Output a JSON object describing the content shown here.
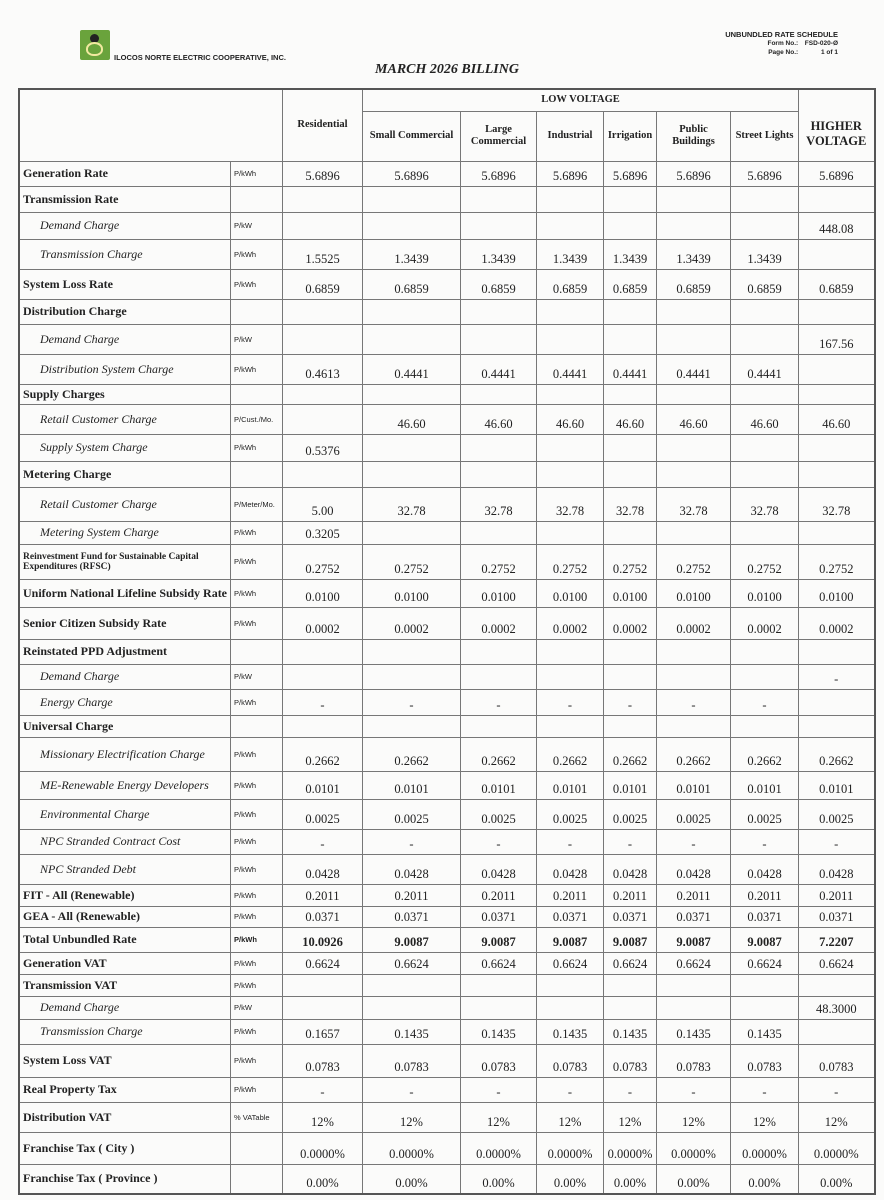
{
  "header": {
    "cooperative": "ILOCOS NORTE ELECTRIC COOPERATIVE, INC.",
    "doc_title": "UNBUNDLED RATE SCHEDULE",
    "form_no_label": "Form No.:",
    "form_no": "FSD-020-Ø",
    "page_no_label": "Page No.:",
    "page_no": "1 of 1",
    "billing_title": "MARCH 2026 BILLING",
    "logo_color": "#6aa33c"
  },
  "columns": {
    "group_low": "LOW VOLTAGE",
    "residential": "Residential",
    "low": [
      "Small Commercial",
      "Large Commercial",
      "Industrial",
      "Irrigation",
      "Public Buildings",
      "Street Lights"
    ],
    "higher": "HIGHER VOLTAGE"
  },
  "rows": [
    {
      "label": "Generation Rate",
      "unit": "P/kWh",
      "style": "bold",
      "values": [
        "5.6896",
        "5.6896",
        "5.6896",
        "5.6896",
        "5.6896",
        "5.6896",
        "5.6896",
        "5.6896"
      ]
    },
    {
      "label": "Transmission Rate",
      "unit": "",
      "style": "bold",
      "values": [
        "",
        "",
        "",
        "",
        "",
        "",
        "",
        ""
      ]
    },
    {
      "label": "Demand Charge",
      "unit": "P/kW",
      "style": "it",
      "values": [
        "",
        "",
        "",
        "",
        "",
        "",
        "",
        "448.08"
      ]
    },
    {
      "label": "Transmission Charge",
      "unit": "P/kWh",
      "style": "it",
      "values": [
        "1.5525",
        "1.3439",
        "1.3439",
        "1.3439",
        "1.3439",
        "1.3439",
        "1.3439",
        ""
      ]
    },
    {
      "label": "System Loss Rate",
      "unit": "P/kWh",
      "style": "bold",
      "values": [
        "0.6859",
        "0.6859",
        "0.6859",
        "0.6859",
        "0.6859",
        "0.6859",
        "0.6859",
        "0.6859"
      ]
    },
    {
      "label": "Distribution Charge",
      "unit": "",
      "style": "bold",
      "values": [
        "",
        "",
        "",
        "",
        "",
        "",
        "",
        ""
      ]
    },
    {
      "label": "Demand Charge",
      "unit": "P/kW",
      "style": "it",
      "values": [
        "",
        "",
        "",
        "",
        "",
        "",
        "",
        "167.56"
      ]
    },
    {
      "label": "Distribution System Charge",
      "unit": "P/kWh",
      "style": "it",
      "values": [
        "0.4613",
        "0.4441",
        "0.4441",
        "0.4441",
        "0.4441",
        "0.4441",
        "0.4441",
        ""
      ]
    },
    {
      "label": "Supply Charges",
      "unit": "",
      "style": "bold",
      "values": [
        "",
        "",
        "",
        "",
        "",
        "",
        "",
        ""
      ]
    },
    {
      "label": "Retail Customer Charge",
      "unit": "P/Cust./Mo.",
      "style": "it",
      "values": [
        "",
        "46.60",
        "46.60",
        "46.60",
        "46.60",
        "46.60",
        "46.60",
        "46.60"
      ]
    },
    {
      "label": "Supply System Charge",
      "unit": "P/kWh",
      "style": "it",
      "values": [
        "0.5376",
        "",
        "",
        "",
        "",
        "",
        "",
        ""
      ]
    },
    {
      "label": "Metering Charge",
      "unit": "",
      "style": "bold",
      "values": [
        "",
        "",
        "",
        "",
        "",
        "",
        "",
        ""
      ]
    },
    {
      "label": "Retail Customer Charge",
      "unit": "P/Meter/Mo.",
      "style": "it",
      "values": [
        "5.00",
        "32.78",
        "32.78",
        "32.78",
        "32.78",
        "32.78",
        "32.78",
        "32.78"
      ]
    },
    {
      "label": "Metering System Charge",
      "unit": "P/kWh",
      "style": "it",
      "values": [
        "0.3205",
        "",
        "",
        "",
        "",
        "",
        "",
        ""
      ]
    },
    {
      "label": "Reinvestment Fund for Sustainable Capital Expenditures (RFSC)",
      "unit": "P/kWh",
      "style": "bold small",
      "values": [
        "0.2752",
        "0.2752",
        "0.2752",
        "0.2752",
        "0.2752",
        "0.2752",
        "0.2752",
        "0.2752"
      ]
    },
    {
      "label": "Uniform National Lifeline Subsidy Rate",
      "unit": "P/kWh",
      "style": "bold",
      "values": [
        "0.0100",
        "0.0100",
        "0.0100",
        "0.0100",
        "0.0100",
        "0.0100",
        "0.0100",
        "0.0100"
      ]
    },
    {
      "label": "Senior Citizen Subsidy Rate",
      "unit": "P/kWh",
      "style": "bold",
      "values": [
        "0.0002",
        "0.0002",
        "0.0002",
        "0.0002",
        "0.0002",
        "0.0002",
        "0.0002",
        "0.0002"
      ]
    },
    {
      "label": "Reinstated PPD Adjustment",
      "unit": "",
      "style": "bold",
      "values": [
        "",
        "",
        "",
        "",
        "",
        "",
        "",
        ""
      ]
    },
    {
      "label": "Demand Charge",
      "unit": "P/kW",
      "style": "it",
      "values": [
        "",
        "",
        "",
        "",
        "",
        "",
        "",
        "-"
      ]
    },
    {
      "label": "Energy Charge",
      "unit": "P/kWh",
      "style": "it",
      "values": [
        "-",
        "-",
        "-",
        "-",
        "-",
        "-",
        "-",
        ""
      ]
    },
    {
      "label": "Universal Charge",
      "unit": "",
      "style": "bold",
      "values": [
        "",
        "",
        "",
        "",
        "",
        "",
        "",
        ""
      ]
    },
    {
      "label": "Missionary Electrification Charge",
      "unit": "P/kWh",
      "style": "it",
      "values": [
        "0.2662",
        "0.2662",
        "0.2662",
        "0.2662",
        "0.2662",
        "0.2662",
        "0.2662",
        "0.2662"
      ]
    },
    {
      "label": "ME-Renewable Energy Developers",
      "unit": "P/kWh",
      "style": "it",
      "values": [
        "0.0101",
        "0.0101",
        "0.0101",
        "0.0101",
        "0.0101",
        "0.0101",
        "0.0101",
        "0.0101"
      ]
    },
    {
      "label": "Environmental Charge",
      "unit": "P/kWh",
      "style": "it",
      "values": [
        "0.0025",
        "0.0025",
        "0.0025",
        "0.0025",
        "0.0025",
        "0.0025",
        "0.0025",
        "0.0025"
      ]
    },
    {
      "label": "NPC Stranded Contract Cost",
      "unit": "P/kWh",
      "style": "it",
      "values": [
        "-",
        "-",
        "-",
        "-",
        "-",
        "-",
        "-",
        "-"
      ]
    },
    {
      "label": "NPC Stranded Debt",
      "unit": "P/kWh",
      "style": "it",
      "values": [
        "0.0428",
        "0.0428",
        "0.0428",
        "0.0428",
        "0.0428",
        "0.0428",
        "0.0428",
        "0.0428"
      ]
    },
    {
      "label": "FIT - All (Renewable)",
      "unit": "P/kWh",
      "style": "bold",
      "values": [
        "0.2011",
        "0.2011",
        "0.2011",
        "0.2011",
        "0.2011",
        "0.2011",
        "0.2011",
        "0.2011"
      ]
    },
    {
      "label": "GEA - All (Renewable)",
      "unit": "P/kWh",
      "style": "bold",
      "values": [
        "0.0371",
        "0.0371",
        "0.0371",
        "0.0371",
        "0.0371",
        "0.0371",
        "0.0371",
        "0.0371"
      ]
    },
    {
      "label": "Total Unbundled Rate",
      "unit": "P/kWh",
      "style": "bold total",
      "values": [
        "10.0926",
        "9.0087",
        "9.0087",
        "9.0087",
        "9.0087",
        "9.0087",
        "9.0087",
        "7.2207"
      ]
    },
    {
      "label": "Generation VAT",
      "unit": "P/kWh",
      "style": "bold",
      "values": [
        "0.6624",
        "0.6624",
        "0.6624",
        "0.6624",
        "0.6624",
        "0.6624",
        "0.6624",
        "0.6624"
      ]
    },
    {
      "label": "Transmission VAT",
      "unit": "P/kWh",
      "style": "bold",
      "values": [
        "",
        "",
        "",
        "",
        "",
        "",
        "",
        ""
      ]
    },
    {
      "label": "Demand Charge",
      "unit": "P/kW",
      "style": "it",
      "values": [
        "",
        "",
        "",
        "",
        "",
        "",
        "",
        "48.3000"
      ]
    },
    {
      "label": "Transmission Charge",
      "unit": "P/kWh",
      "style": "it",
      "values": [
        "0.1657",
        "0.1435",
        "0.1435",
        "0.1435",
        "0.1435",
        "0.1435",
        "0.1435",
        ""
      ]
    },
    {
      "label": "System Loss VAT",
      "unit": "P/kWh",
      "style": "bold",
      "values": [
        "0.0783",
        "0.0783",
        "0.0783",
        "0.0783",
        "0.0783",
        "0.0783",
        "0.0783",
        "0.0783"
      ]
    },
    {
      "label": "Real Property Tax",
      "unit": "P/kWh",
      "style": "bold",
      "values": [
        "-",
        "-",
        "-",
        "-",
        "-",
        "-",
        "-",
        "-"
      ]
    },
    {
      "label": "Distribution VAT",
      "unit": "% VATable",
      "style": "bold",
      "values": [
        "12%",
        "12%",
        "12%",
        "12%",
        "12%",
        "12%",
        "12%",
        "12%"
      ]
    },
    {
      "label": "Franchise Tax ( City )",
      "unit": "",
      "style": "bold",
      "values": [
        "0.0000%",
        "0.0000%",
        "0.0000%",
        "0.0000%",
        "0.0000%",
        "0.0000%",
        "0.0000%",
        "0.0000%"
      ]
    },
    {
      "label": "Franchise Tax ( Province )",
      "unit": "",
      "style": "bold",
      "values": [
        "0.00%",
        "0.00%",
        "0.00%",
        "0.00%",
        "0.00%",
        "0.00%",
        "0.00%",
        "0.00%"
      ]
    }
  ]
}
